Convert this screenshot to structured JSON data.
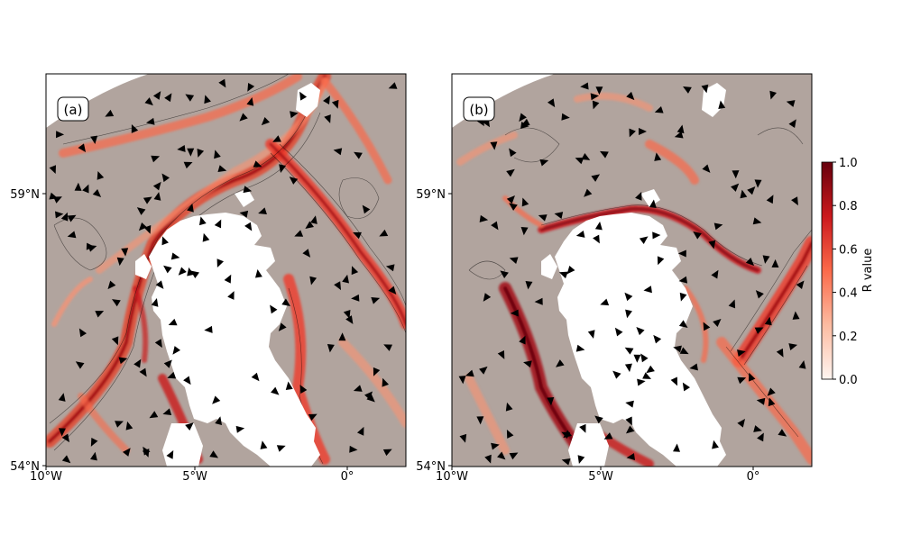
{
  "figure": {
    "panels": [
      {
        "label": "(a)",
        "x_ticks": [
          "10°W",
          "5°W",
          "0°"
        ],
        "y_ticks": [
          "59°N",
          "54°N"
        ]
      },
      {
        "label": "(b)",
        "x_ticks": [
          "10°W",
          "5°W",
          "0°"
        ],
        "y_ticks": [
          "59°N",
          "54°N"
        ]
      }
    ],
    "colorbar": {
      "label": "R value",
      "ticks": [
        "0.0",
        "0.2",
        "0.4",
        "0.6",
        "0.8",
        "1.0"
      ],
      "range": [
        0,
        1
      ],
      "colormap": "Reds",
      "colors": [
        "#fff5f0",
        "#fcbba1",
        "#fb6a4a",
        "#cb181d",
        "#67000d"
      ]
    },
    "ocean_background_color": "#b1a49e",
    "land_color": "#ffffff",
    "arrow_color": "#000000"
  }
}
